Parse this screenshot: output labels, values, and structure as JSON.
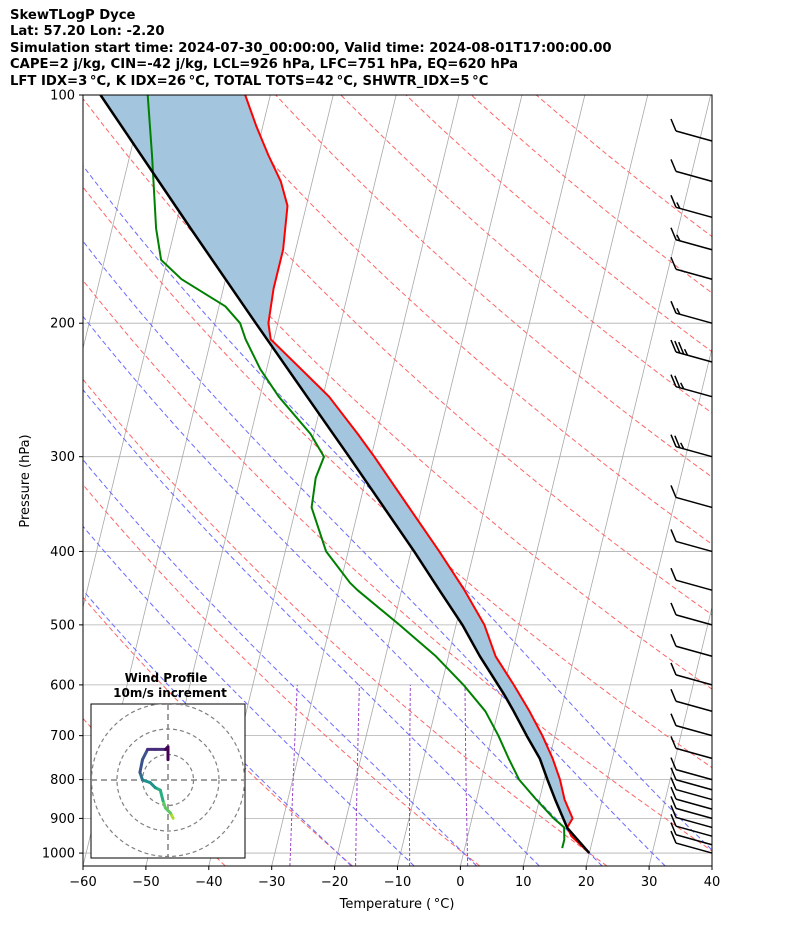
{
  "header": {
    "line1": "SkewTLogP Dyce",
    "line2": "Lat: 57.20   Lon: -2.20",
    "line3": "Simulation start time: 2024-07-30_00:00:00, Valid time: 2024-08-01T17:00:00.00",
    "line4": "CAPE=2 j/kg, CIN=-42 j/kg, LCL=926 hPa, LFC=751 hPa, EQ=620 hPa",
    "line5": "LFT IDX=3 °C, K IDX=26 °C, TOTAL TOTS=42 °C, SHWTR_IDX=5 °C"
  },
  "colors": {
    "temperature": "#ff0000",
    "dewpoint": "#008000",
    "parcel": "#000000",
    "cape_fill": "#a3c5de",
    "dry_adiabat": "#ff6666",
    "moist_adiabat": "#6a6aff",
    "mixing_ratio": "#9b45c8",
    "isotherm": "#a9a9a9",
    "isobar": "#b0b0b0"
  },
  "chart_data": {
    "type": "skewt",
    "xlabel": "Temperature ( °C)",
    "ylabel": "Pressure (hPa)",
    "xlim": [
      -60,
      40
    ],
    "ylim": [
      1040,
      100
    ],
    "xticks": [
      -60,
      -50,
      -40,
      -30,
      -20,
      -10,
      0,
      10,
      20,
      30,
      40
    ],
    "yticks": [
      1000,
      900,
      800,
      700,
      600,
      500,
      400,
      300,
      200,
      100
    ],
    "temperature_profile": [
      [
        1000,
        20.0
      ],
      [
        950,
        16.5
      ],
      [
        925,
        15.5
      ],
      [
        900,
        16.0
      ],
      [
        850,
        14.0
      ],
      [
        800,
        12.5
      ],
      [
        750,
        10.5
      ],
      [
        700,
        8.0
      ],
      [
        650,
        5.0
      ],
      [
        600,
        1.5
      ],
      [
        550,
        -2.5
      ],
      [
        500,
        -5.5
      ],
      [
        450,
        -10.0
      ],
      [
        400,
        -15.5
      ],
      [
        350,
        -22.0
      ],
      [
        300,
        -29.5
      ],
      [
        280,
        -33.0
      ],
      [
        250,
        -39.0
      ],
      [
        230,
        -44.5
      ],
      [
        210,
        -50.5
      ],
      [
        200,
        -51.5
      ],
      [
        180,
        -52.0
      ],
      [
        160,
        -52.0
      ],
      [
        140,
        -53.0
      ],
      [
        130,
        -55.0
      ],
      [
        120,
        -58.0
      ],
      [
        110,
        -61.0
      ],
      [
        100,
        -64.0
      ]
    ],
    "dewpoint_profile": [
      [
        985,
        15.5
      ],
      [
        960,
        15.5
      ],
      [
        925,
        15.0
      ],
      [
        900,
        13.0
      ],
      [
        850,
        9.5
      ],
      [
        800,
        6.0
      ],
      [
        750,
        3.5
      ],
      [
        700,
        1.0
      ],
      [
        650,
        -2.0
      ],
      [
        600,
        -6.5
      ],
      [
        550,
        -12.0
      ],
      [
        500,
        -19.0
      ],
      [
        450,
        -27.0
      ],
      [
        440,
        -28.5
      ],
      [
        400,
        -33.5
      ],
      [
        350,
        -37.5
      ],
      [
        320,
        -38.0
      ],
      [
        300,
        -37.5
      ],
      [
        280,
        -40.5
      ],
      [
        250,
        -47.0
      ],
      [
        230,
        -51.0
      ],
      [
        210,
        -54.5
      ],
      [
        200,
        -56.0
      ],
      [
        190,
        -59.0
      ],
      [
        175,
        -67.0
      ],
      [
        165,
        -71.0
      ],
      [
        150,
        -73.0
      ],
      [
        120,
        -76.5
      ],
      [
        100,
        -79.5
      ]
    ],
    "parcel_profile": [
      [
        1000,
        20.0
      ],
      [
        926,
        15.5
      ],
      [
        900,
        14.5
      ],
      [
        850,
        12.5
      ],
      [
        800,
        10.5
      ],
      [
        751,
        8.5
      ],
      [
        700,
        5.5
      ],
      [
        650,
        2.5
      ],
      [
        620,
        0.5
      ],
      [
        600,
        -1.0
      ],
      [
        550,
        -5.0
      ],
      [
        500,
        -9.0
      ],
      [
        450,
        -14.0
      ],
      [
        400,
        -19.5
      ],
      [
        350,
        -26.0
      ],
      [
        300,
        -33.5
      ],
      [
        250,
        -42.5
      ],
      [
        200,
        -53.5
      ],
      [
        150,
        -67.5
      ],
      [
        100,
        -87.0
      ]
    ],
    "wind_barbs": [
      {
        "pressure": 1000,
        "speed_kt": 10
      },
      {
        "pressure": 975,
        "speed_kt": 10
      },
      {
        "pressure": 950,
        "speed_kt": 10
      },
      {
        "pressure": 925,
        "speed_kt": 10
      },
      {
        "pressure": 900,
        "speed_kt": 10
      },
      {
        "pressure": 875,
        "speed_kt": 10
      },
      {
        "pressure": 850,
        "speed_kt": 10
      },
      {
        "pressure": 825,
        "speed_kt": 10
      },
      {
        "pressure": 800,
        "speed_kt": 10
      },
      {
        "pressure": 750,
        "speed_kt": 10
      },
      {
        "pressure": 700,
        "speed_kt": 10
      },
      {
        "pressure": 650,
        "speed_kt": 10
      },
      {
        "pressure": 600,
        "speed_kt": 10
      },
      {
        "pressure": 550,
        "speed_kt": 10
      },
      {
        "pressure": 500,
        "speed_kt": 10
      },
      {
        "pressure": 450,
        "speed_kt": 10
      },
      {
        "pressure": 400,
        "speed_kt": 10
      },
      {
        "pressure": 350,
        "speed_kt": 10
      },
      {
        "pressure": 300,
        "speed_kt": 25
      },
      {
        "pressure": 250,
        "speed_kt": 25
      },
      {
        "pressure": 225,
        "speed_kt": 35
      },
      {
        "pressure": 200,
        "speed_kt": 15
      },
      {
        "pressure": 175,
        "speed_kt": 10
      },
      {
        "pressure": 160,
        "speed_kt": 15
      },
      {
        "pressure": 145,
        "speed_kt": 15
      },
      {
        "pressure": 130,
        "speed_kt": 10
      },
      {
        "pressure": 115,
        "speed_kt": 10
      }
    ],
    "hodograph": {
      "title": "Wind Profile",
      "subtitle": "10m/s increment",
      "rings_ms": [
        10,
        20,
        30
      ],
      "points": [
        [
          2,
          -15
        ],
        [
          1,
          -13
        ],
        [
          -1,
          -11
        ],
        [
          -2,
          -8
        ],
        [
          -3,
          -4
        ],
        [
          -5,
          -3
        ],
        [
          -7,
          -1
        ],
        [
          -10,
          0
        ],
        [
          -11,
          3
        ],
        [
          -10,
          8
        ],
        [
          -8,
          12
        ],
        [
          -5,
          12
        ],
        [
          -1,
          12
        ],
        [
          0,
          13
        ],
        [
          0,
          8
        ]
      ]
    }
  }
}
